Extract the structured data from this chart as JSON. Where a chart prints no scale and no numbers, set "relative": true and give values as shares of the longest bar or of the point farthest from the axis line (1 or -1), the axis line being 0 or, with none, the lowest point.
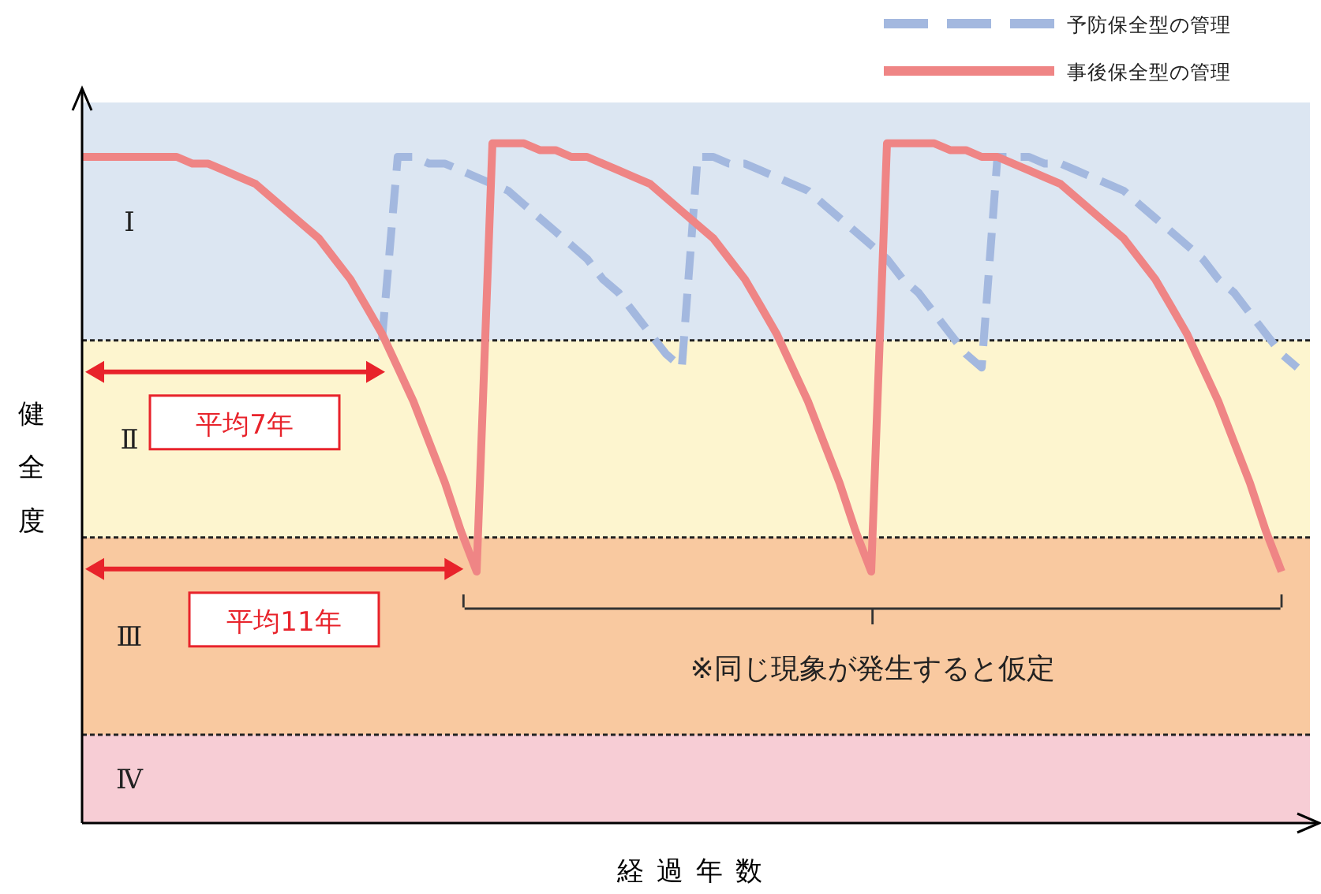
{
  "chart_data": {
    "type": "line",
    "relative": true,
    "xlabel": "経過年数",
    "ylabel": "健全度",
    "legend": "top right",
    "categories": [
      null,
      null,
      null,
      null,
      null,
      null,
      null,
      null,
      null,
      null,
      null,
      null,
      null,
      null,
      null,
      null,
      null,
      null,
      null,
      null,
      null,
      null,
      null,
      null,
      null,
      null,
      null,
      null,
      null,
      null,
      null,
      null,
      null,
      null,
      null,
      null,
      null,
      null,
      null,
      null,
      null,
      null,
      null,
      null,
      null,
      null,
      null,
      null,
      null,
      null,
      null,
      null,
      null,
      null,
      null,
      null,
      null,
      null,
      null,
      null,
      null,
      null,
      null,
      null,
      null,
      null,
      null,
      null,
      null,
      null,
      null,
      null,
      null,
      null,
      null,
      null,
      null,
      null
    ],
    "series": [
      {
        "name": "予防保全型の管理",
        "color": "#a3b8df",
        "line_style": "dashed",
        "values": [
          null,
          null,
          null,
          null,
          null,
          null,
          null,
          null,
          null,
          null,
          null,
          null,
          null,
          null,
          null,
          null,
          null,
          null,
          null,
          0.71,
          0.98,
          0.98,
          0.97,
          0.97,
          0.96,
          0.95,
          0.94,
          0.93,
          0.91,
          0.89,
          0.87,
          0.85,
          0.83,
          0.8,
          0.78,
          0.75,
          0.72,
          0.69,
          0.67,
          0.98,
          0.98,
          0.97,
          0.97,
          0.96,
          0.95,
          0.94,
          0.93,
          0.91,
          0.89,
          0.87,
          0.85,
          0.83,
          0.8,
          0.78,
          0.75,
          0.72,
          0.69,
          0.67,
          0.98,
          0.98,
          0.98,
          0.97,
          0.97,
          0.96,
          0.95,
          0.94,
          0.93,
          0.91,
          0.89,
          0.87,
          0.85,
          0.83,
          0.8,
          0.78,
          0.75,
          0.72,
          0.69,
          0.67
        ]
      },
      {
        "name": "事後保全型の管理",
        "color": "#ef8585",
        "line_style": "solid",
        "values": [
          0.98,
          0.98,
          0.98,
          0.98,
          0.98,
          0.98,
          0.98,
          0.97,
          0.97,
          0.96,
          0.95,
          0.94,
          0.92,
          0.9,
          0.88,
          0.86,
          0.83,
          0.8,
          0.76,
          0.72,
          0.67,
          0.62,
          0.56,
          0.5,
          0.43,
          0.37,
          1.0,
          1.0,
          1.0,
          0.99,
          0.99,
          0.98,
          0.98,
          0.97,
          0.96,
          0.95,
          0.94,
          0.92,
          0.9,
          0.88,
          0.86,
          0.83,
          0.8,
          0.76,
          0.72,
          0.67,
          0.62,
          0.56,
          0.5,
          0.43,
          0.37,
          1.0,
          1.0,
          1.0,
          1.0,
          0.99,
          0.99,
          0.98,
          0.98,
          0.97,
          0.96,
          0.95,
          0.94,
          0.92,
          0.9,
          0.88,
          0.86,
          0.83,
          0.8,
          0.76,
          0.72,
          0.67,
          0.62,
          0.56,
          0.5,
          0.43,
          0.37,
          null
        ]
      }
    ],
    "bands": [
      {
        "axis": "y",
        "from": 0.71,
        "to": 1.06,
        "label": "Ⅰ",
        "color": "#dce6f2"
      },
      {
        "axis": "y",
        "from": 0.42,
        "to": 0.71,
        "label": "Ⅱ",
        "color": "#fdf5cf"
      },
      {
        "axis": "y",
        "from": 0.13,
        "to": 0.42,
        "label": "Ⅲ",
        "color": "#f9c9a0"
      },
      {
        "axis": "y",
        "from": 0,
        "to": 0.13,
        "label": "Ⅳ",
        "color": "#f7cdd5"
      }
    ],
    "annotations": [
      "平均7年",
      "平均11年",
      "※同じ現象が発生すると仮定"
    ]
  }
}
